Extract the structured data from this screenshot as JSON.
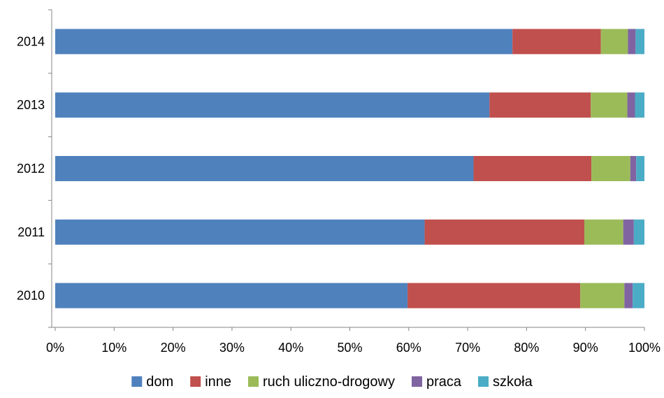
{
  "chart_data": {
    "type": "bar",
    "orientation": "horizontal",
    "stacking": "percent",
    "categories": [
      "2010",
      "2011",
      "2012",
      "2013",
      "2014"
    ],
    "series": [
      {
        "name": "dom",
        "color": "#4F81BD",
        "values": [
          59.8,
          62.7,
          71.0,
          73.7,
          77.6
        ]
      },
      {
        "name": "inne",
        "color": "#C0504D",
        "values": [
          29.3,
          27.1,
          20.0,
          17.2,
          15.0
        ]
      },
      {
        "name": "ruch uliczno-drogowy",
        "color": "#9BBB59",
        "values": [
          7.5,
          6.6,
          6.6,
          6.2,
          4.6
        ]
      },
      {
        "name": "praca",
        "color": "#8064A2",
        "values": [
          1.4,
          1.8,
          1.0,
          1.3,
          1.3
        ]
      },
      {
        "name": "szkoła",
        "color": "#4BACC6",
        "values": [
          2.0,
          1.8,
          1.4,
          1.6,
          1.5
        ]
      }
    ],
    "xlim": [
      0,
      100
    ],
    "x_ticks": [
      "0%",
      "10%",
      "20%",
      "30%",
      "40%",
      "50%",
      "60%",
      "70%",
      "80%",
      "90%",
      "100%"
    ],
    "grid": false,
    "legend_position": "bottom",
    "title": "",
    "xlabel": "",
    "ylabel": ""
  }
}
